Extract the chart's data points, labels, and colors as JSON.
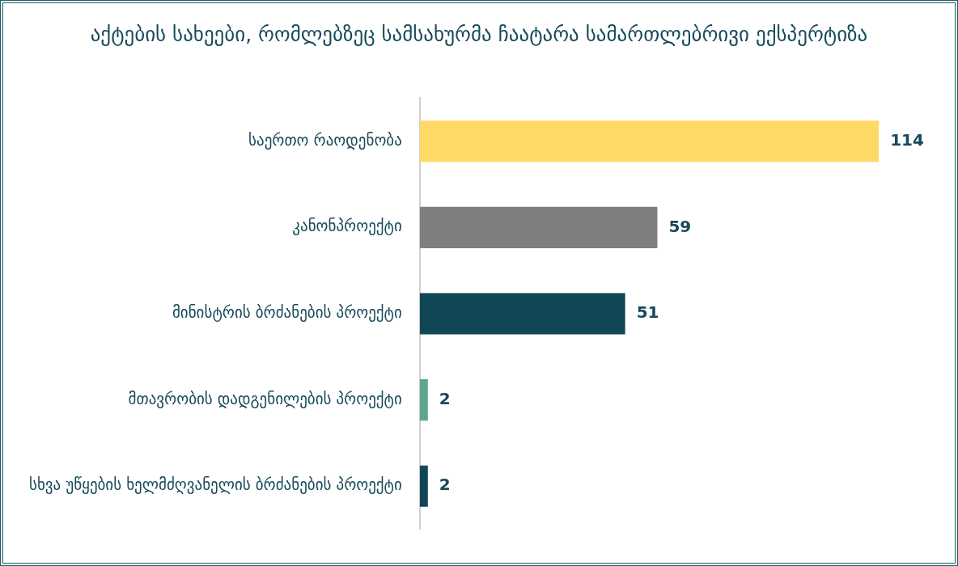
{
  "chart_data": {
    "type": "bar",
    "orientation": "horizontal",
    "title": "აქტების სახეები, რომლებზეც სამსახურმა ჩაატარა სამართლებრივი ექსპერტიზა",
    "categories": [
      "საერთო რაოდენობა",
      "კანონპროექტი",
      "მინისტრის ბრძანების პროექტი",
      "მთავრობის დადგენილების პროექტი",
      "სხვა უწყების ხელმძღვანელის ბრძანების პროექტი"
    ],
    "values": [
      114,
      59,
      51,
      2,
      2
    ],
    "colors": [
      "#ffd966",
      "#7f7f7f",
      "#114656",
      "#5fa391",
      "#114656"
    ],
    "data_labels": true,
    "tick_labels": "y"
  }
}
